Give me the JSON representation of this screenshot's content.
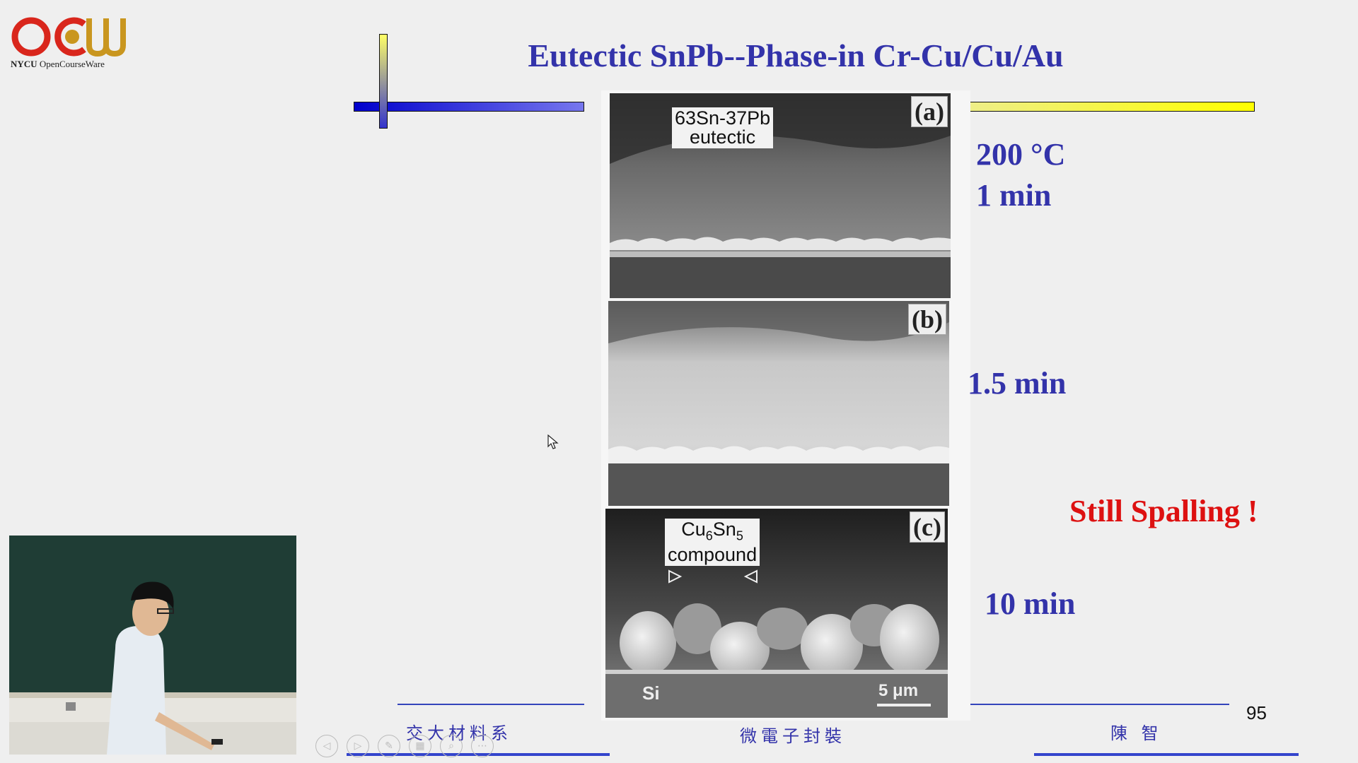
{
  "logo": {
    "brand": "OCW",
    "org": "NYCU",
    "product": "OpenCourseWare",
    "colors": {
      "red": "#d9261c",
      "gold": "#c9961f"
    }
  },
  "slide": {
    "title": "Eutectic SnPb--Phase-in Cr-Cu/Cu/Au",
    "micrograph": {
      "panel_a": {
        "label": "(a)",
        "note_line1": "63Sn-37Pb",
        "note_line2": "eutectic"
      },
      "panel_b": {
        "label": "(b)"
      },
      "panel_c": {
        "label": "(c)",
        "note_formula": "Cu6Sn5",
        "note_line2": "compound",
        "substrate": "Si",
        "scale": "5 μm"
      }
    },
    "conditions": {
      "temp": "200 °C",
      "time_a": "1 min",
      "time_b": "1.5 min",
      "time_c": "10 min"
    },
    "callout": "Still Spalling !",
    "footer": {
      "left": "交大材料系",
      "center": "微電子封裝",
      "right": "陳 智"
    },
    "page_number": "95"
  },
  "toolbar": {
    "buttons": [
      "previous-icon",
      "next-icon",
      "pen-icon",
      "slides-grid-icon",
      "zoom-icon",
      "more-icon"
    ]
  }
}
